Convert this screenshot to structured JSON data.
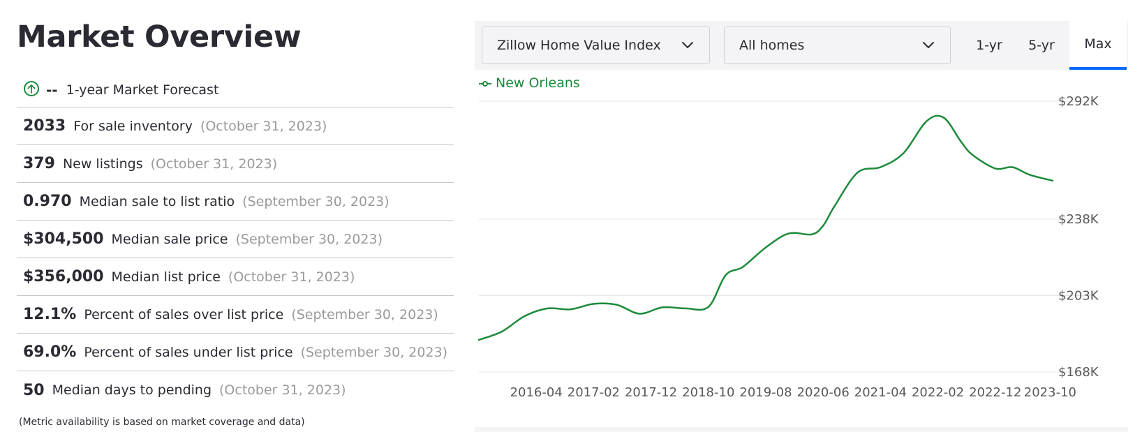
{
  "left": {
    "title": "Market Overview",
    "forecast": {
      "value": "--",
      "label": "1-year Market Forecast",
      "icon": "arrow-up-circle-icon"
    },
    "metrics": [
      {
        "value": "2033",
        "label": "For sale inventory",
        "date": "(October 31, 2023)"
      },
      {
        "value": "379",
        "label": "New listings",
        "date": "(October 31, 2023)"
      },
      {
        "value": "0.970",
        "label": "Median sale to list ratio",
        "date": "(September 30, 2023)"
      },
      {
        "value": "$304,500",
        "label": "Median sale price",
        "date": "(September 30, 2023)"
      },
      {
        "value": "$356,000",
        "label": "Median list price",
        "date": "(October 31, 2023)"
      },
      {
        "value": "12.1%",
        "label": "Percent of sales over list price",
        "date": "(September 30, 2023)"
      },
      {
        "value": "69.0%",
        "label": "Percent of sales under list price",
        "date": "(September 30, 2023)"
      },
      {
        "value": "50",
        "label": "Median days to pending",
        "date": "(October 31, 2023)"
      }
    ],
    "note": "(Metric availability is based on market coverage and data)"
  },
  "controls": {
    "metric_select": "Zillow Home Value Index",
    "home_type_select": "All homes",
    "ranges": [
      "1-yr",
      "5-yr",
      "Max"
    ],
    "selected_range": "Max"
  },
  "colors": {
    "line": "#1d8a3a",
    "accent": "#006aff",
    "grid": "#e6e6e6",
    "axis_text": "#595959"
  },
  "chart_data": {
    "type": "line",
    "series": [
      {
        "name": "New Orleans",
        "x": [
          "2015-06",
          "2015-10",
          "2016-02",
          "2016-06",
          "2016-10",
          "2017-02",
          "2017-06",
          "2017-10",
          "2018-02",
          "2018-06",
          "2018-10",
          "2019-01",
          "2019-04",
          "2019-08",
          "2019-12",
          "2020-04",
          "2020-06",
          "2020-08",
          "2020-12",
          "2021-04",
          "2021-08",
          "2021-12",
          "2022-03",
          "2022-06",
          "2022-08",
          "2022-12",
          "2023-03",
          "2023-06",
          "2023-10"
        ],
        "values": [
          182.7,
          186.5,
          193.6,
          197.1,
          196.7,
          199.2,
          198.8,
          194.7,
          197.6,
          197.1,
          197.8,
          212.3,
          216.1,
          225.0,
          231.4,
          231.0,
          235.0,
          244.0,
          259.3,
          261.8,
          268.2,
          282.8,
          284.5,
          273.6,
          267.5,
          261.2,
          261.8,
          258.3,
          255.6
        ]
      }
    ],
    "x_tick_labels": [
      "2016-04",
      "2017-02",
      "2017-12",
      "2018-10",
      "2019-08",
      "2020-06",
      "2021-04",
      "2022-02",
      "2022-12",
      "2023-10"
    ],
    "y_tick_labels": [
      "$292K",
      "$238K",
      "$203K",
      "$168K"
    ],
    "y_ticks": [
      292,
      238,
      203,
      168
    ],
    "ylim": [
      168,
      292
    ],
    "grid": true,
    "legend": "top-left"
  }
}
